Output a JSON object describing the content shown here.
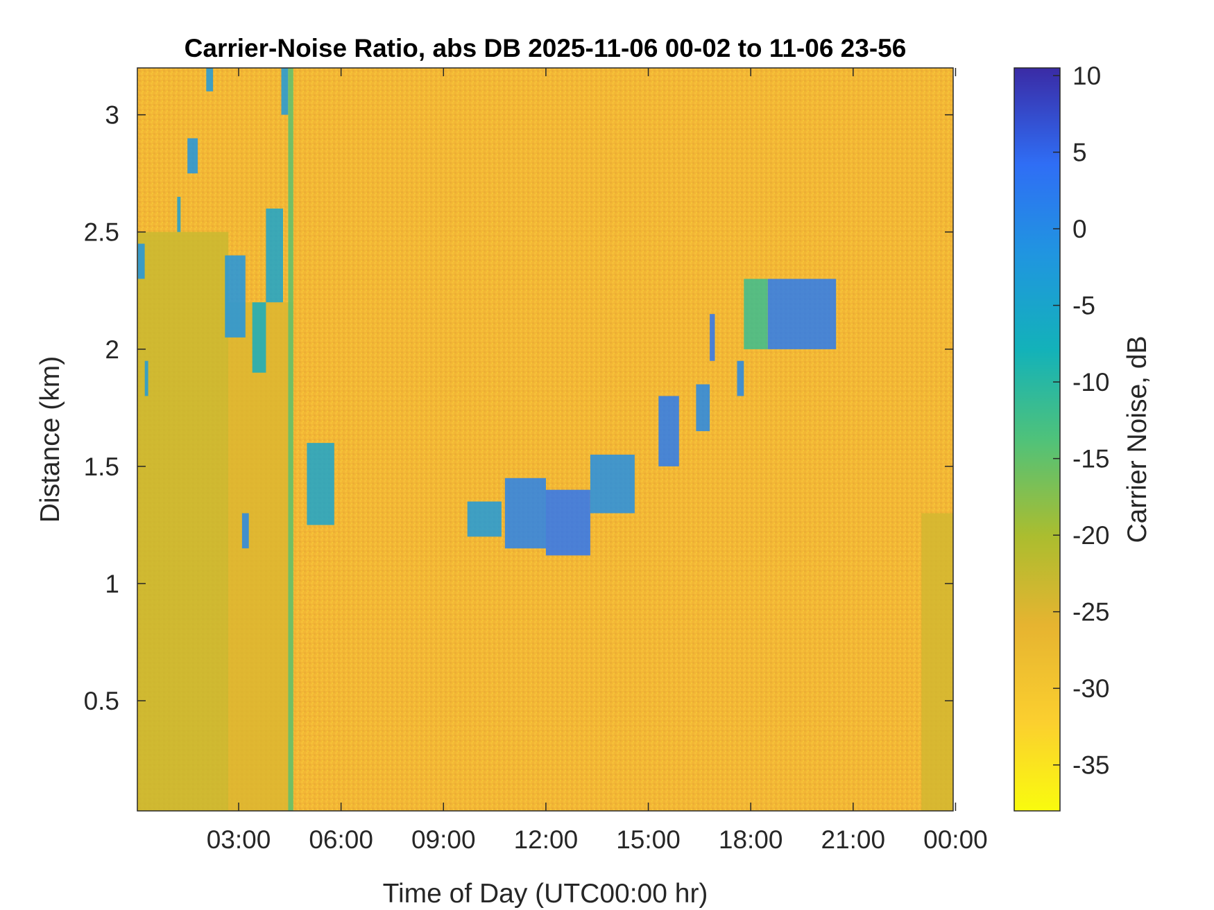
{
  "chart_data": {
    "type": "heatmap",
    "title": "Carrier-Noise Ratio, abs DB 2025-11-06 00-02 to 11-06 23-56",
    "xlabel": "Time of Day (UTC00:00 hr)",
    "ylabel": "Distance (km)",
    "x_unit": "hours UTC",
    "xlim": [
      0.033,
      23.93
    ],
    "ylim": [
      0.03,
      3.2
    ],
    "x_ticks": [
      {
        "value": 3,
        "label": "03:00"
      },
      {
        "value": 6,
        "label": "06:00"
      },
      {
        "value": 9,
        "label": "09:00"
      },
      {
        "value": 12,
        "label": "12:00"
      },
      {
        "value": 15,
        "label": "15:00"
      },
      {
        "value": 18,
        "label": "18:00"
      },
      {
        "value": 21,
        "label": "21:00"
      },
      {
        "value": 24,
        "label": "00:00"
      }
    ],
    "y_ticks": [
      {
        "value": 0.5,
        "label": "0.5"
      },
      {
        "value": 1,
        "label": "1"
      },
      {
        "value": 1.5,
        "label": "1.5"
      },
      {
        "value": 2,
        "label": "2"
      },
      {
        "value": 2.5,
        "label": "2.5"
      },
      {
        "value": 3,
        "label": "3"
      }
    ],
    "colorbar": {
      "label": "Carrier Noise, dB",
      "range": [
        -38,
        10.5
      ],
      "ticks": [
        {
          "value": 10,
          "label": "10"
        },
        {
          "value": 5,
          "label": "5"
        },
        {
          "value": 0,
          "label": "0"
        },
        {
          "value": -5,
          "label": "-5"
        },
        {
          "value": -10,
          "label": "-10"
        },
        {
          "value": -15,
          "label": "-15"
        },
        {
          "value": -20,
          "label": "-20"
        },
        {
          "value": -25,
          "label": "-25"
        },
        {
          "value": -30,
          "label": "-30"
        },
        {
          "value": -35,
          "label": "-35"
        }
      ],
      "colormap": "parula"
    },
    "background_value_db": -30,
    "features": [
      {
        "time_start": 0.05,
        "time_end": 2.7,
        "dist_start": 0.03,
        "dist_end": 2.5,
        "value_db": -23
      },
      {
        "time_start": 2.7,
        "time_end": 4.6,
        "dist_start": 0.03,
        "dist_end": 2.2,
        "value_db": -25
      },
      {
        "time_start": 4.45,
        "time_end": 4.6,
        "dist_start": 0.03,
        "dist_end": 3.2,
        "value_db": -15
      },
      {
        "time_start": 23.0,
        "time_end": 23.93,
        "dist_start": 0.03,
        "dist_end": 1.3,
        "value_db": -24
      },
      {
        "time_start": 0.05,
        "time_end": 0.25,
        "dist_start": 2.3,
        "dist_end": 2.45,
        "value_db": -2
      },
      {
        "time_start": 0.25,
        "time_end": 0.35,
        "dist_start": 1.8,
        "dist_end": 1.95,
        "value_db": -3
      },
      {
        "time_start": 1.2,
        "time_end": 1.3,
        "dist_start": 2.5,
        "dist_end": 2.65,
        "value_db": -4
      },
      {
        "time_start": 1.5,
        "time_end": 1.8,
        "dist_start": 2.75,
        "dist_end": 2.9,
        "value_db": -2
      },
      {
        "time_start": 2.05,
        "time_end": 2.25,
        "dist_start": 3.1,
        "dist_end": 3.2,
        "value_db": -3
      },
      {
        "time_start": 2.6,
        "time_end": 3.2,
        "dist_start": 2.05,
        "dist_end": 2.4,
        "value_db": -2
      },
      {
        "time_start": 3.1,
        "time_end": 3.3,
        "dist_start": 1.15,
        "dist_end": 1.3,
        "value_db": 0
      },
      {
        "time_start": 3.4,
        "time_end": 3.8,
        "dist_start": 1.9,
        "dist_end": 2.2,
        "value_db": -7
      },
      {
        "time_start": 3.8,
        "time_end": 4.3,
        "dist_start": 2.2,
        "dist_end": 2.6,
        "value_db": -5
      },
      {
        "time_start": 4.25,
        "time_end": 4.45,
        "dist_start": 3.0,
        "dist_end": 3.2,
        "value_db": -3
      },
      {
        "time_start": 5.0,
        "time_end": 5.8,
        "dist_start": 1.25,
        "dist_end": 1.6,
        "value_db": -5
      },
      {
        "time_start": 9.7,
        "time_end": 10.7,
        "dist_start": 1.2,
        "dist_end": 1.35,
        "value_db": -3
      },
      {
        "time_start": 10.8,
        "time_end": 12.0,
        "dist_start": 1.15,
        "dist_end": 1.45,
        "value_db": 1
      },
      {
        "time_start": 12.0,
        "time_end": 13.3,
        "dist_start": 1.12,
        "dist_end": 1.4,
        "value_db": 3
      },
      {
        "time_start": 13.3,
        "time_end": 14.6,
        "dist_start": 1.3,
        "dist_end": 1.55,
        "value_db": -1
      },
      {
        "time_start": 15.3,
        "time_end": 15.9,
        "dist_start": 1.5,
        "dist_end": 1.8,
        "value_db": 2
      },
      {
        "time_start": 16.4,
        "time_end": 16.8,
        "dist_start": 1.65,
        "dist_end": 1.85,
        "value_db": 0
      },
      {
        "time_start": 16.8,
        "time_end": 16.95,
        "dist_start": 1.95,
        "dist_end": 2.15,
        "value_db": 3
      },
      {
        "time_start": 17.6,
        "time_end": 17.8,
        "dist_start": 1.8,
        "dist_end": 1.95,
        "value_db": 0
      },
      {
        "time_start": 17.8,
        "time_end": 18.5,
        "dist_start": 2.0,
        "dist_end": 2.3,
        "value_db": -12
      },
      {
        "time_start": 18.5,
        "time_end": 20.5,
        "dist_start": 2.0,
        "dist_end": 2.3,
        "value_db": 2
      }
    ]
  }
}
